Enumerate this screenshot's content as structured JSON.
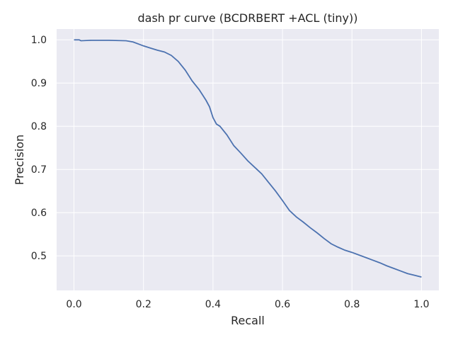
{
  "chart_data": {
    "type": "line",
    "title": "dash pr curve (BCDRBERT +ACL (tiny))",
    "xlabel": "Recall",
    "ylabel": "Precision",
    "xlim": [
      -0.05,
      1.05
    ],
    "ylim": [
      0.42,
      1.025
    ],
    "xticks": [
      "0.0",
      "0.2",
      "0.4",
      "0.6",
      "0.8",
      "1.0"
    ],
    "yticks": [
      "0.5",
      "0.6",
      "0.7",
      "0.8",
      "0.9",
      "1.0"
    ],
    "grid": true,
    "background": "#eaeaf2",
    "line_color": "#4c72b0",
    "series": [
      {
        "x": [
          0.0,
          0.015,
          0.02,
          0.05,
          0.1,
          0.15,
          0.17,
          0.19,
          0.2,
          0.22,
          0.24,
          0.26,
          0.28,
          0.3,
          0.32,
          0.34,
          0.36,
          0.38,
          0.39,
          0.4,
          0.41,
          0.42,
          0.44,
          0.46,
          0.48,
          0.5,
          0.52,
          0.54,
          0.56,
          0.58,
          0.6,
          0.62,
          0.64,
          0.66,
          0.68,
          0.7,
          0.72,
          0.74,
          0.76,
          0.78,
          0.8,
          0.82,
          0.84,
          0.86,
          0.88,
          0.9,
          0.92,
          0.94,
          0.96,
          0.98,
          1.0
        ],
        "y": [
          1.0,
          1.0,
          0.998,
          0.999,
          0.999,
          0.998,
          0.995,
          0.989,
          0.986,
          0.981,
          0.976,
          0.972,
          0.964,
          0.95,
          0.93,
          0.905,
          0.885,
          0.86,
          0.845,
          0.82,
          0.805,
          0.8,
          0.78,
          0.755,
          0.738,
          0.72,
          0.705,
          0.69,
          0.67,
          0.65,
          0.628,
          0.605,
          0.59,
          0.578,
          0.565,
          0.553,
          0.54,
          0.528,
          0.52,
          0.513,
          0.508,
          0.502,
          0.496,
          0.49,
          0.484,
          0.477,
          0.471,
          0.465,
          0.459,
          0.455,
          0.451
        ]
      }
    ]
  }
}
